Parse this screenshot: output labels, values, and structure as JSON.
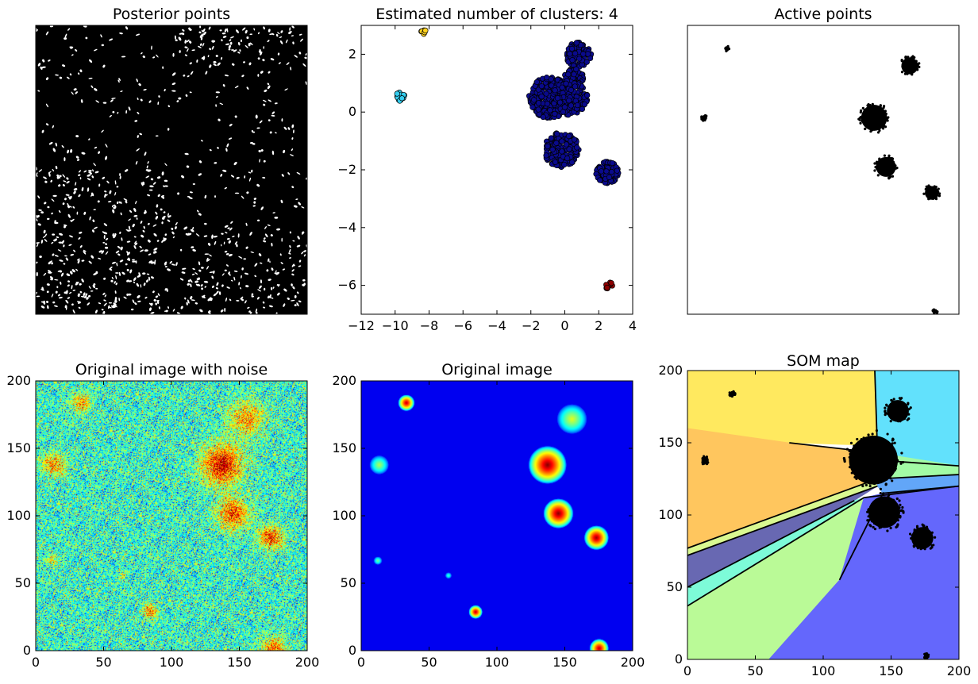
{
  "chart_data": [
    {
      "id": "posterior",
      "type": "scatter",
      "title": "Posterior points",
      "xlim": [
        0,
        200
      ],
      "ylim": [
        0,
        200
      ],
      "axes_ticks_visible": false,
      "description_point_density": "dense uniform cloud of small black points covering the whole panel",
      "point_color": "#000000"
    },
    {
      "id": "clusters",
      "type": "scatter",
      "title": "Estimated number of clusters: 4",
      "xlim": [
        -12,
        4
      ],
      "ylim": [
        -7,
        3
      ],
      "xticks": [
        -12,
        -10,
        -8,
        -6,
        -4,
        -2,
        0,
        2,
        4
      ],
      "yticks": [
        2,
        0,
        -2,
        -4,
        -6
      ],
      "xtick_labels": [
        "−12",
        "−10",
        "−8",
        "−6",
        "−4",
        "−2",
        "0",
        "2",
        "4"
      ],
      "ytick_labels": [
        "2",
        "0",
        "−2",
        "−4",
        "−6"
      ],
      "series": [
        {
          "color": "#0a0a8c",
          "centers": [
            [
              0.8,
              2.0
            ],
            [
              -0.9,
              0.5
            ],
            [
              -0.2,
              -1.3
            ],
            [
              2.5,
              -2.1
            ],
            [
              0.2,
              0.8
            ]
          ]
        },
        {
          "color": "#33ccee",
          "centers": [
            [
              -9.7,
              0.55
            ]
          ]
        },
        {
          "color": "#ffd21f",
          "centers": [
            [
              -8.3,
              2.75
            ]
          ]
        },
        {
          "color": "#8b0000",
          "centers": [
            [
              2.6,
              -6.0
            ]
          ]
        }
      ]
    },
    {
      "id": "active",
      "type": "scatter",
      "title": "Active points",
      "xlim": [
        -12,
        4
      ],
      "ylim": [
        -7,
        3
      ],
      "axes_ticks_visible": false,
      "point_color": "#000000",
      "clusters": [
        {
          "x": 1.1,
          "y": 1.6,
          "r": 0.55
        },
        {
          "x": -1.0,
          "y": -0.2,
          "r": 0.85
        },
        {
          "x": -0.3,
          "y": -1.9,
          "r": 0.65
        },
        {
          "x": 2.4,
          "y": -2.8,
          "r": 0.45
        },
        {
          "x": -11.0,
          "y": -0.2,
          "r": 0.18
        },
        {
          "x": -9.7,
          "y": 2.2,
          "r": 0.15
        },
        {
          "x": 2.6,
          "y": -6.9,
          "r": 0.15
        }
      ]
    },
    {
      "id": "noisy",
      "type": "heatmap",
      "title": "Original image with noise",
      "xlim": [
        0,
        200
      ],
      "ylim": [
        0,
        200
      ],
      "xticks": [
        0,
        50,
        100,
        150,
        200
      ],
      "yticks": [
        0,
        50,
        100,
        150,
        200
      ],
      "colormap": "jet",
      "sources": [
        {
          "x": 33,
          "y": 184,
          "sigma": 5,
          "amp": 0.6
        },
        {
          "x": 155,
          "y": 172,
          "sigma": 9,
          "amp": 0.6
        },
        {
          "x": 13,
          "y": 138,
          "sigma": 6,
          "amp": 0.6
        },
        {
          "x": 137,
          "y": 138,
          "sigma": 10,
          "amp": 1.0
        },
        {
          "x": 145,
          "y": 102,
          "sigma": 8,
          "amp": 0.8
        },
        {
          "x": 173,
          "y": 84,
          "sigma": 6,
          "amp": 0.8
        },
        {
          "x": 12,
          "y": 67,
          "sigma": 3,
          "amp": 0.45
        },
        {
          "x": 64,
          "y": 56,
          "sigma": 2,
          "amp": 0.3
        },
        {
          "x": 84,
          "y": 29,
          "sigma": 4,
          "amp": 0.6
        },
        {
          "x": 175,
          "y": 2,
          "sigma": 6,
          "amp": 0.7
        }
      ]
    },
    {
      "id": "original",
      "type": "heatmap",
      "title": "Original image",
      "xlim": [
        0,
        200
      ],
      "ylim": [
        0,
        200
      ],
      "xticks": [
        0,
        50,
        100,
        150,
        200
      ],
      "yticks": [
        0,
        50,
        100,
        150,
        200
      ],
      "colormap": "jet",
      "background": "#00007f",
      "sources": [
        {
          "x": 33,
          "y": 184,
          "r": 6,
          "peak": 0.95
        },
        {
          "x": 155,
          "y": 172,
          "r": 11,
          "peak": 0.6
        },
        {
          "x": 13,
          "y": 138,
          "r": 7,
          "peak": 0.55
        },
        {
          "x": 137,
          "y": 138,
          "r": 14,
          "peak": 1.0
        },
        {
          "x": 145,
          "y": 102,
          "r": 11,
          "peak": 1.0
        },
        {
          "x": 173,
          "y": 84,
          "r": 9,
          "peak": 0.98
        },
        {
          "x": 12,
          "y": 67,
          "r": 3,
          "peak": 0.5
        },
        {
          "x": 64,
          "y": 56,
          "r": 2.3,
          "peak": 0.45
        },
        {
          "x": 84,
          "y": 29,
          "r": 5,
          "peak": 0.95
        },
        {
          "x": 175,
          "y": 2,
          "r": 7,
          "peak": 0.95
        }
      ]
    },
    {
      "id": "som",
      "type": "scatter",
      "title": "SOM map",
      "xlim": [
        0,
        200
      ],
      "ylim": [
        0,
        200
      ],
      "xticks": [
        0,
        50,
        100,
        150,
        200
      ],
      "yticks": [
        0,
        50,
        100,
        150,
        200
      ],
      "regions": [
        {
          "color": "#ffe95f",
          "points": [
            [
              0,
              200
            ],
            [
              138,
              200
            ],
            [
              140,
              148
            ],
            [
              75,
              150
            ],
            [
              0,
              160
            ]
          ]
        },
        {
          "color": "#62e1fc",
          "points": [
            [
              138,
              200
            ],
            [
              200,
              200
            ],
            [
              200,
              134
            ],
            [
              140,
              138
            ]
          ]
        },
        {
          "color": "#ffc65e",
          "points": [
            [
              0,
              160
            ],
            [
              75,
              150
            ],
            [
              140,
              143
            ],
            [
              137,
              124
            ],
            [
              0,
              77
            ]
          ]
        },
        {
          "color": "#d9f891",
          "points": [
            [
              0,
              77
            ],
            [
              137,
              124
            ],
            [
              140,
              120
            ],
            [
              0,
              72
            ]
          ]
        },
        {
          "color": "#6868b2",
          "points": [
            [
              0,
              72
            ],
            [
              140,
              120
            ],
            [
              123,
              110
            ],
            [
              0,
              50
            ]
          ]
        },
        {
          "color": "#7dfbd8",
          "points": [
            [
              0,
              50
            ],
            [
              123,
              110
            ],
            [
              130,
              112
            ],
            [
              0,
              37
            ]
          ]
        },
        {
          "color": "#a2fba5",
          "points": [
            [
              140,
              143
            ],
            [
              200,
              134
            ],
            [
              200,
              128
            ],
            [
              140,
              125
            ]
          ]
        },
        {
          "color": "#62a6f8",
          "points": [
            [
              140,
              125
            ],
            [
              200,
              128
            ],
            [
              200,
              120
            ],
            [
              144,
              115
            ],
            [
              140,
              120
            ]
          ]
        },
        {
          "color": "#bafa97",
          "points": [
            [
              0,
              37
            ],
            [
              130,
              112
            ],
            [
              112,
              55
            ],
            [
              60,
              0
            ],
            [
              0,
              0
            ]
          ]
        },
        {
          "color": "#6467fc",
          "points": [
            [
              60,
              0
            ],
            [
              112,
              55
            ],
            [
              130,
              112
            ],
            [
              144,
              115
            ],
            [
              200,
              120
            ],
            [
              200,
              0
            ]
          ]
        }
      ],
      "boundaries": [
        [
          [
            138,
            200
          ],
          [
            140,
            143
          ]
        ],
        [
          [
            140,
            138
          ],
          [
            200,
            134
          ]
        ],
        [
          [
            75,
            150
          ],
          [
            140,
            143
          ]
        ],
        [
          [
            0,
            77
          ],
          [
            137,
            124
          ]
        ],
        [
          [
            0,
            72
          ],
          [
            140,
            120
          ]
        ],
        [
          [
            0,
            50
          ],
          [
            123,
            110
          ]
        ],
        [
          [
            0,
            37
          ],
          [
            130,
            112
          ]
        ],
        [
          [
            140,
            125
          ],
          [
            200,
            128
          ]
        ],
        [
          [
            144,
            115
          ],
          [
            200,
            120
          ]
        ],
        [
          [
            112,
            55
          ],
          [
            144,
            115
          ]
        ],
        [
          [
            200,
            120
          ],
          [
            130,
            112
          ]
        ]
      ],
      "clusters": [
        {
          "x": 155,
          "y": 172,
          "r": 9
        },
        {
          "x": 137,
          "y": 138,
          "r": 20
        },
        {
          "x": 145,
          "y": 102,
          "r": 13
        },
        {
          "x": 173,
          "y": 84,
          "r": 9
        },
        {
          "x": 13,
          "y": 138,
          "r": 3
        },
        {
          "x": 33,
          "y": 184,
          "r": 2
        },
        {
          "x": 176,
          "y": 2,
          "r": 2
        }
      ]
    }
  ]
}
